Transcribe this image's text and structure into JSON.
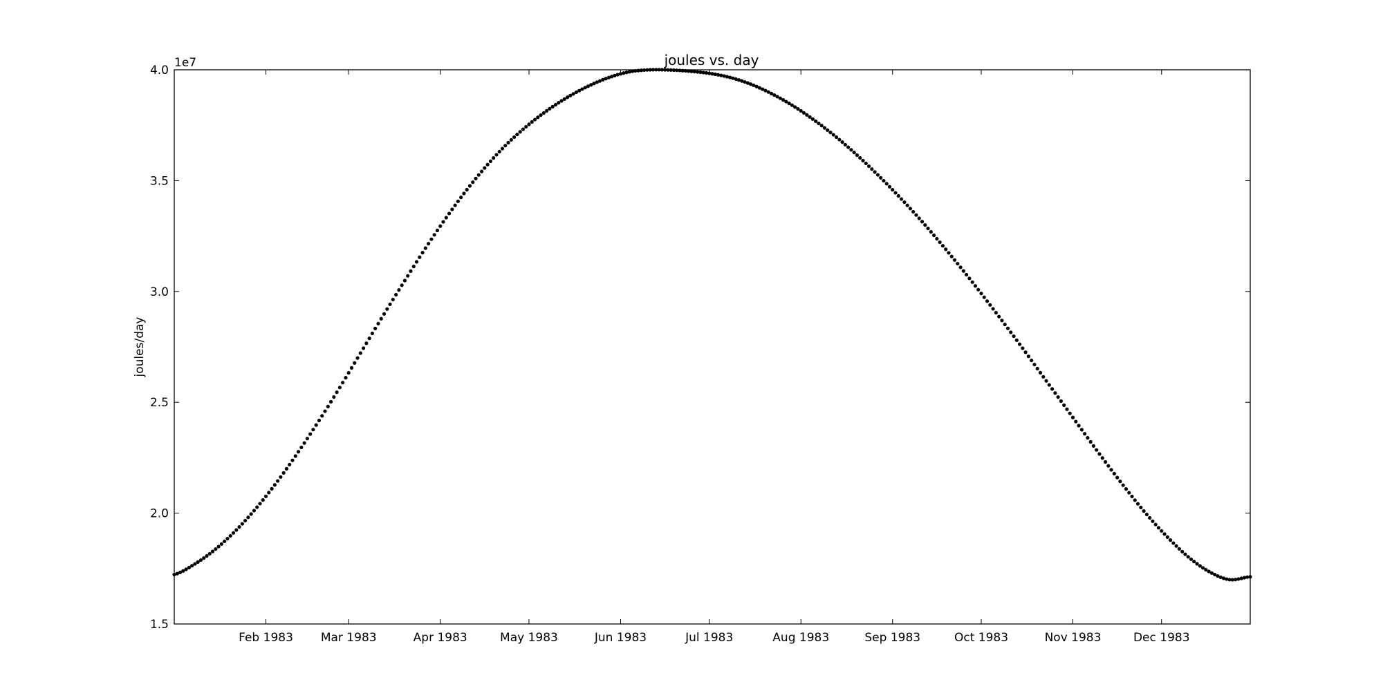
{
  "chart_data": {
    "type": "scatter",
    "title": "joules vs. day",
    "xlabel": "",
    "ylabel": "joules/day",
    "y_offset_label": "1e7",
    "x_domain": [
      "1983-01-01",
      "1983-12-31"
    ],
    "ylim": [
      15000000,
      40000000
    ],
    "y_ticks": [
      {
        "value": 15000000,
        "label": "1.5"
      },
      {
        "value": 20000000,
        "label": "2.0"
      },
      {
        "value": 25000000,
        "label": "2.5"
      },
      {
        "value": 30000000,
        "label": "3.0"
      },
      {
        "value": 35000000,
        "label": "3.5"
      },
      {
        "value": 40000000,
        "label": "4.0"
      }
    ],
    "x_ticks": [
      {
        "date": "1983-02-01",
        "label": "Feb 1983"
      },
      {
        "date": "1983-03-01",
        "label": "Mar 1983"
      },
      {
        "date": "1983-04-01",
        "label": "Apr 1983"
      },
      {
        "date": "1983-05-01",
        "label": "May 1983"
      },
      {
        "date": "1983-06-01",
        "label": "Jun 1983"
      },
      {
        "date": "1983-07-01",
        "label": "Jul 1983"
      },
      {
        "date": "1983-08-01",
        "label": "Aug 1983"
      },
      {
        "date": "1983-09-01",
        "label": "Sep 1983"
      },
      {
        "date": "1983-10-01",
        "label": "Oct 1983"
      },
      {
        "date": "1983-11-01",
        "label": "Nov 1983"
      },
      {
        "date": "1983-12-01",
        "label": "Dec 1983"
      }
    ],
    "marker_color": "#000000",
    "grid": false,
    "series": [
      {
        "x": [
          "1983-01-01",
          "1983-01-08",
          "1983-01-15",
          "1983-01-22",
          "1983-01-29",
          "1983-02-05",
          "1983-02-12",
          "1983-02-19",
          "1983-02-26",
          "1983-03-05",
          "1983-03-12",
          "1983-03-19",
          "1983-03-26",
          "1983-04-02",
          "1983-04-09",
          "1983-04-16",
          "1983-04-23",
          "1983-04-30",
          "1983-05-07",
          "1983-05-14",
          "1983-05-21",
          "1983-05-28",
          "1983-06-04",
          "1983-06-11",
          "1983-06-18",
          "1983-06-25",
          "1983-07-02",
          "1983-07-09",
          "1983-07-16",
          "1983-07-23",
          "1983-07-30",
          "1983-08-06",
          "1983-08-13",
          "1983-08-20",
          "1983-08-27",
          "1983-09-03",
          "1983-09-10",
          "1983-09-17",
          "1983-09-24",
          "1983-10-01",
          "1983-10-08",
          "1983-10-15",
          "1983-10-22",
          "1983-10-29",
          "1983-11-05",
          "1983-11-12",
          "1983-11-19",
          "1983-11-26",
          "1983-12-03",
          "1983-12-10",
          "1983-12-17",
          "1983-12-24",
          "1983-12-31"
        ],
        "y": [
          17230000,
          17710000,
          18380000,
          19240000,
          20270000,
          21450000,
          22770000,
          24180000,
          25670000,
          27220000,
          28770000,
          30280000,
          31750000,
          33140000,
          34420000,
          35570000,
          36580000,
          37430000,
          38150000,
          38760000,
          39260000,
          39650000,
          39910000,
          40000000,
          39990000,
          39930000,
          39820000,
          39620000,
          39300000,
          38860000,
          38320000,
          37680000,
          36960000,
          36150000,
          35260000,
          34310000,
          33300000,
          32220000,
          31090000,
          29910000,
          28690000,
          27440000,
          26150000,
          24870000,
          23580000,
          22310000,
          21090000,
          19940000,
          18920000,
          18030000,
          17370000,
          17000000,
          17130000
        ]
      }
    ]
  }
}
